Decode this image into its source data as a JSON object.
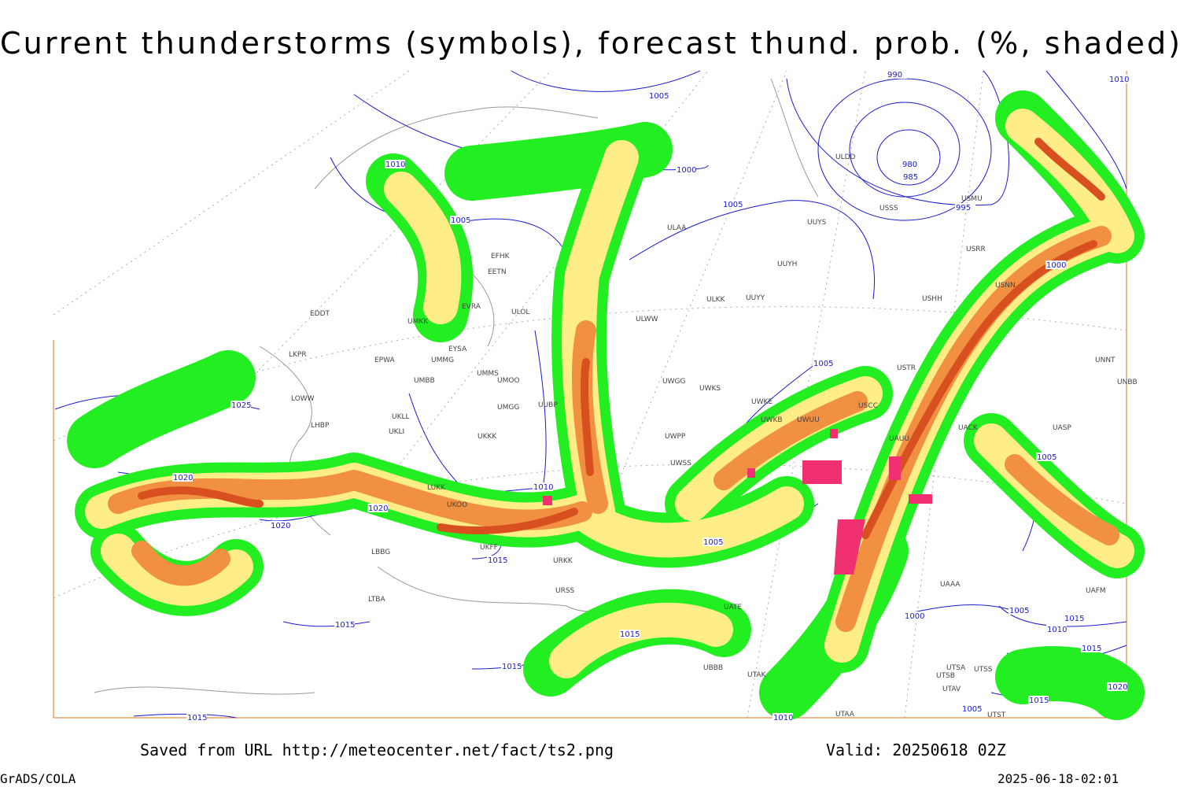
{
  "header": {
    "title": "Current thunderstorms (symbols), forecast thund. prob. (%, shaded)"
  },
  "isobar_labels": [
    1005,
    990,
    1010,
    1010,
    1000,
    1005,
    1005,
    995,
    980,
    985,
    1000,
    1005,
    1025,
    1020,
    1005,
    1010,
    1020,
    1020,
    1005,
    1015,
    1000,
    1005,
    1015,
    1010,
    1015,
    1015,
    1015,
    1015,
    1020,
    1015,
    1005,
    1015,
    1010
  ],
  "stations": [
    "ULDD",
    "USSS",
    "USMU",
    "ULAA",
    "UUYS",
    "USRR",
    "UUYH",
    "EFHK",
    "EETN",
    "USNN",
    "ULKK",
    "UUYY",
    "USHH",
    "EVRA",
    "ULOL",
    "EDDT",
    "ULWW",
    "UMKK",
    "EYSA",
    "LKPR",
    "EPWA",
    "UMMG",
    "USTR",
    "UNNT",
    "UMMS",
    "UMOO",
    "UWGG",
    "UWKS",
    "UNBB",
    "UMBB",
    "LOWW",
    "UWKE",
    "UMGG",
    "UUBP",
    "UWKB",
    "UWUU",
    "USCC",
    "UKLL",
    "UKLI",
    "LHBP",
    "UKKK",
    "UWPP",
    "UAUU",
    "UACK",
    "UASP",
    "UWSS",
    "LUKK",
    "UKOO",
    "LBBG",
    "UKFF",
    "URKK",
    "URSS",
    "UATE",
    "UBBB",
    "UTAK",
    "UTSA",
    "UTSB",
    "UTSS",
    "UTAV",
    "UTAA",
    "UTST",
    "UAAA",
    "UAFM",
    "LTBA"
  ],
  "footer": {
    "source": "Saved from URL http://meteocenter.net/fact/ts2.png",
    "valid": "Valid: 20250618 02Z",
    "software": "GrADS/COLA",
    "timestamp": "2025-06-18-02:01"
  }
}
